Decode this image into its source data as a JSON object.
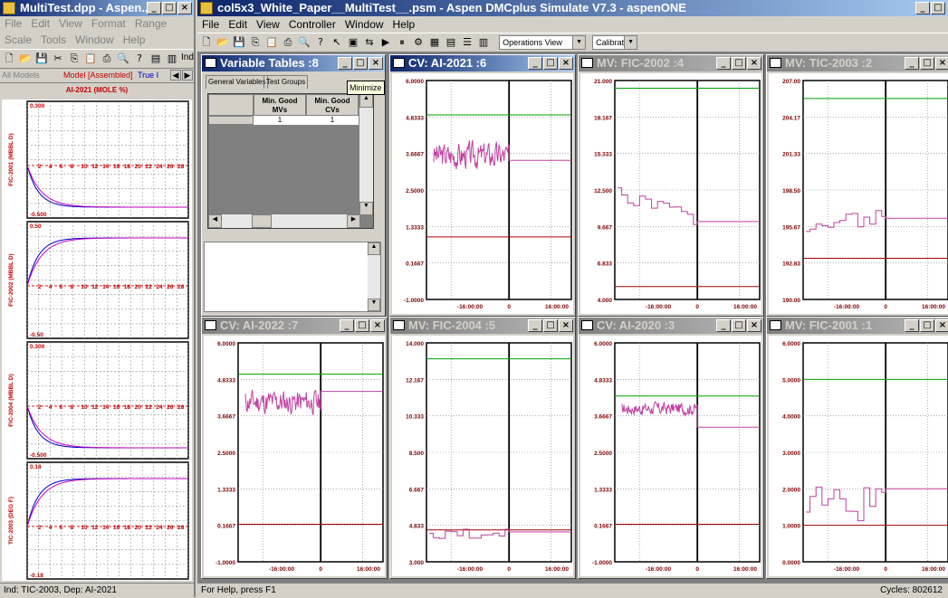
{
  "left_window": {
    "title": "MultiTest.dpp - Aspen...",
    "menu": [
      "File",
      "Edit",
      "View",
      "Format",
      "Range",
      "Scale",
      "Tools",
      "Window",
      "Help"
    ],
    "tabs": [
      "All Models",
      "Model [Assembled]",
      "True I"
    ],
    "subtitle": "AI-2021 (MOLE %)",
    "ind_button": "Ind",
    "status": "Ind: TIC-2003, Dep: AI-2021",
    "ticks": [
      "2",
      "4",
      "6",
      "8",
      "10",
      "12",
      "14",
      "16",
      "18",
      "20",
      "22",
      "24",
      "26",
      "28"
    ],
    "strips": [
      {
        "label": "FIC-2001 (MBBL D)",
        "top": "0.300",
        "bottom": "-0.500"
      },
      {
        "label": "FIC-2002 (MBBL D)",
        "top": "0.50",
        "bottom": "-0.50"
      },
      {
        "label": "FIC-2004 (MBBL D)",
        "top": "0.300",
        "bottom": "-0.500"
      },
      {
        "label": "TIC-2003 (DEG F)",
        "top": "0.18",
        "bottom": "-0.18"
      }
    ]
  },
  "main_window": {
    "title": "col5x3_White_Paper__MultiTest__.psm - Aspen DMCplus Simulate V7.3 - aspenONE",
    "menu": [
      "File",
      "Edit",
      "View",
      "Controller",
      "Window",
      "Help"
    ],
    "view_combo": "Operations View",
    "mode_combo": "Calibrate",
    "status_left": "For Help, press F1",
    "status_right": "Cycles: 802612"
  },
  "variable_tables": {
    "title": "Variable Tables :8",
    "tabs": [
      "General Variables",
      "Test Groups"
    ],
    "tooltip": "Minimize",
    "col1": "Min. Good MVs",
    "col2": "Min. Good CVs",
    "val1": "1",
    "val2": "1"
  },
  "charts": [
    {
      "id": "c1",
      "title": "CV: AI-2021 :6",
      "active": true,
      "ylabels": [
        "6.0000",
        "4.8333",
        "3.6667",
        "2.5000",
        "1.3333",
        "0.1667",
        "-1.0000"
      ],
      "ymin": -1,
      "ymax": 6,
      "green": 4.9,
      "red": 1.0,
      "base": 3.6,
      "amp": 0.6,
      "future": 3.45,
      "seed": 3,
      "xlabels": [
        "-16:00:00",
        "0",
        "16:00:00"
      ]
    },
    {
      "id": "c2",
      "title": "MV: FIC-2002 :4",
      "active": false,
      "ylabels": [
        "21.000",
        "18.167",
        "15.333",
        "12.500",
        "9.667",
        "6.833",
        "4.000"
      ],
      "ymin": 4,
      "ymax": 21,
      "green": 20.4,
      "red": 5.0,
      "base": 12.2,
      "amp": 0.6,
      "future": 10.05,
      "seed": 5,
      "step": true,
      "trend": -2.0,
      "xlabels": [
        "-16:00:00",
        "0",
        "16:00:00"
      ]
    },
    {
      "id": "c3",
      "title": "MV: TIC-2003 :2",
      "active": false,
      "ylabels": [
        "207.00",
        "204.17",
        "201.33",
        "198.50",
        "195.67",
        "192.83",
        "190.00"
      ],
      "ymin": 190,
      "ymax": 207,
      "green": 205.6,
      "red": 193.2,
      "base": 195.6,
      "amp": 0.6,
      "future": 196.3,
      "seed": 9,
      "step": true,
      "trend": 0.8,
      "xlabels": [
        "-16:00:00",
        "0",
        "16:00:00"
      ]
    },
    {
      "id": "c4",
      "title": "CV: AI-2022 :7",
      "active": false,
      "ylabels": [
        "6.0000",
        "4.8333",
        "3.6667",
        "2.5000",
        "1.3333",
        "0.1667",
        "-1.0000"
      ],
      "ymin": -1,
      "ymax": 6,
      "green": 5.0,
      "red": 0.2,
      "base": 4.1,
      "amp": 0.55,
      "future": 4.45,
      "seed": 11,
      "xlabels": [
        "-16:00:00",
        "0",
        "16:00:00"
      ]
    },
    {
      "id": "c5",
      "title": "MV: FIC-2004 :5",
      "active": false,
      "ylabels": [
        "14.000",
        "12.167",
        "10.333",
        "8.500",
        "6.667",
        "4.833",
        "3.000"
      ],
      "ymin": 3,
      "ymax": 14,
      "green": 13.2,
      "red": 4.6,
      "base": 4.4,
      "amp": 0.25,
      "future": 4.5,
      "seed": 13,
      "step": true,
      "xlabels": [
        "-16:00:00",
        "0",
        "16:00:00"
      ]
    },
    {
      "id": "c6",
      "title": "CV: AI-2020 :3",
      "active": false,
      "ylabels": [
        "6.0000",
        "4.8333",
        "3.6667",
        "2.5000",
        "1.3333",
        "0.1667",
        "-1.0000"
      ],
      "ymin": -1,
      "ymax": 6,
      "green": 4.3,
      "red": 0.2,
      "base": 3.9,
      "amp": 0.3,
      "future": 3.3,
      "seed": 17,
      "xlabels": [
        "-16:00:00",
        "0",
        "16:00:00"
      ]
    },
    {
      "id": "c7",
      "title": "MV: FIC-2001 :1",
      "active": false,
      "ylabels": [
        "6.0000",
        "5.0000",
        "4.0000",
        "3.0000",
        "2.0000",
        "1.0000",
        "0.0000"
      ],
      "ymin": 0,
      "ymax": 6,
      "green": 5.0,
      "red": 1.0,
      "base": 1.6,
      "amp": 0.5,
      "future": 2.0,
      "seed": 21,
      "step": true,
      "xlabels": [
        "-16:00:00",
        "0",
        "16:00:00"
      ]
    }
  ]
}
